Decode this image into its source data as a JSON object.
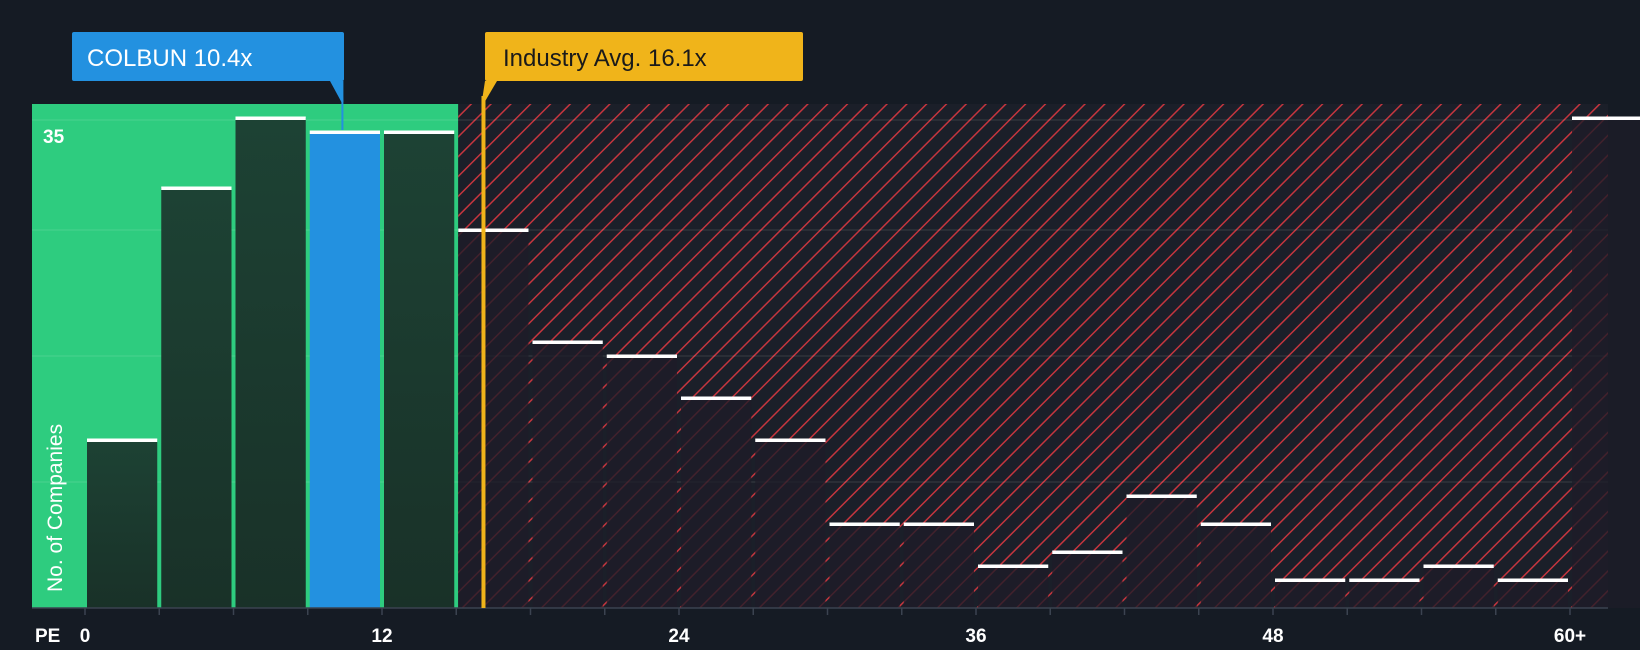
{
  "chart_data": {
    "type": "bar",
    "title": "",
    "xlabel": "PE",
    "ylabel": "No. of Companies",
    "x_ticks": [
      {
        "value": 0,
        "label": "0"
      },
      {
        "value": 12,
        "label": "12"
      },
      {
        "value": 24,
        "label": "24"
      },
      {
        "value": 36,
        "label": "36"
      },
      {
        "value": 48,
        "label": "48"
      },
      {
        "value": 60,
        "label": "60+"
      }
    ],
    "y_tick_label": "35",
    "y_tick_value": 35,
    "ylim": [
      0,
      36
    ],
    "bin_width": 3,
    "bins": [
      {
        "start": 0,
        "count": 12
      },
      {
        "start": 3,
        "count": 30
      },
      {
        "start": 6,
        "count": 35
      },
      {
        "start": 9,
        "count": 34,
        "highlight": true
      },
      {
        "start": 12,
        "count": 34
      },
      {
        "start": 15,
        "count": 27
      },
      {
        "start": 18,
        "count": 19
      },
      {
        "start": 21,
        "count": 18
      },
      {
        "start": 24,
        "count": 15
      },
      {
        "start": 27,
        "count": 12
      },
      {
        "start": 30,
        "count": 6
      },
      {
        "start": 33,
        "count": 6
      },
      {
        "start": 36,
        "count": 3
      },
      {
        "start": 39,
        "count": 4
      },
      {
        "start": 42,
        "count": 8
      },
      {
        "start": 45,
        "count": 6
      },
      {
        "start": 48,
        "count": 2
      },
      {
        "start": 51,
        "count": 2
      },
      {
        "start": 54,
        "count": 3
      },
      {
        "start": 57,
        "count": 2
      },
      {
        "start": 60,
        "count": 35
      }
    ],
    "company": {
      "label": "COLBUN 10.4x",
      "value": 10.4
    },
    "industry": {
      "label": "Industry Avg. 16.1x",
      "value": 16.1
    },
    "colors": {
      "background": "#151b24",
      "undervalued_zone": "#2ecc7f",
      "company_bar": "#2391e0",
      "bar_dark": "#1b3a32",
      "overvalued_bar": "#24232f",
      "hatch": "#c4353e",
      "industry_tag": "#f0b41a",
      "bar_cap": "#ffffff"
    }
  }
}
